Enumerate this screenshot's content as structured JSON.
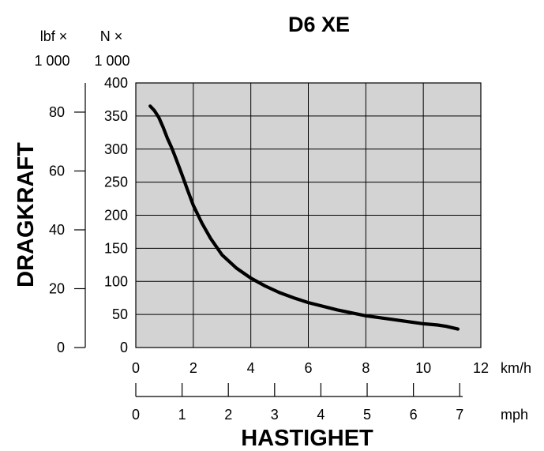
{
  "chart_data": {
    "type": "line",
    "title": "D6 XE",
    "xlabel": "HASTIGHET",
    "ylabel": "DRAGKRAFT",
    "x_unit": "km/h",
    "x2_unit": "mph",
    "y_unit_left": "lbf ×",
    "y_unit_left_mult": "1 000",
    "y_unit_right": "N ×",
    "y_unit_right_mult": "1 000",
    "xlim": [
      0,
      12
    ],
    "ylim": [
      0,
      400
    ],
    "x_ticks": [
      "0",
      "2",
      "4",
      "6",
      "8",
      "10",
      "12"
    ],
    "x2_ticks": [
      "0",
      "1",
      "2",
      "3",
      "4",
      "5",
      "6",
      "7"
    ],
    "y_ticks": [
      "0",
      "50",
      "100",
      "150",
      "200",
      "250",
      "300",
      "350",
      "400"
    ],
    "y2_ticks": [
      "0",
      "20",
      "40",
      "60",
      "80"
    ],
    "x2_range": [
      0,
      7.4565
    ],
    "y2_range": [
      0,
      89.924
    ],
    "grid": true,
    "background": "#d3d3d3",
    "line_color": "#000000",
    "series": [
      {
        "x": [
          0.5,
          0.65,
          0.8,
          0.95,
          1.1,
          1.25,
          1.4,
          1.6,
          1.8,
          2.0,
          2.3,
          2.6,
          3.0,
          3.5,
          4.0,
          4.5,
          5.0,
          5.5,
          6.0,
          7.0,
          8.0,
          9.0,
          10.0,
          10.5,
          10.8,
          11.2
        ],
        "y": [
          365,
          358,
          348,
          333,
          316,
          302,
          285,
          262,
          238,
          215,
          188,
          165,
          140,
          120,
          105,
          93,
          83,
          75,
          68,
          57,
          48,
          42,
          36,
          34,
          32,
          28
        ]
      }
    ]
  }
}
